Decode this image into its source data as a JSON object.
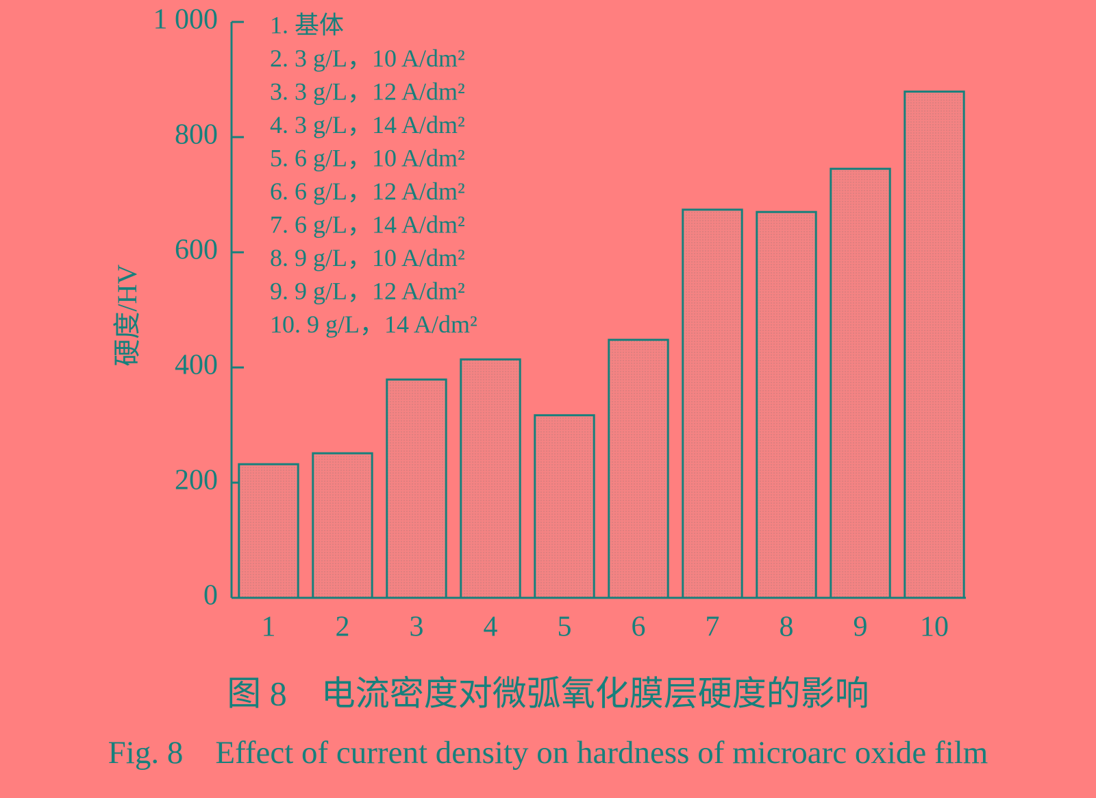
{
  "chart_data": {
    "type": "bar",
    "caption_cn": "图 8　电流密度对微弧氧化膜层硬度的影响",
    "caption_en": "Fig. 8　Effect of current density on hardness of microarc oxide film",
    "y_label": "硬度/HV",
    "categories": [
      "1",
      "2",
      "3",
      "4",
      "5",
      "6",
      "7",
      "8",
      "9",
      "10"
    ],
    "values": [
      232,
      251,
      379,
      414,
      317,
      448,
      674,
      670,
      745,
      879
    ],
    "color": "#17807c",
    "ylim": [
      0,
      1000
    ],
    "yticks": [
      0,
      200,
      400,
      600,
      800,
      {
        "value": 1000,
        "label": "1 000"
      }
    ],
    "legend": [
      "1. 基体",
      "2. 3 g/L，10 A/dm²",
      "3. 3 g/L，12 A/dm²",
      "4. 3 g/L，14 A/dm²",
      "5. 6 g/L，10 A/dm²",
      "6. 6 g/L，12 A/dm²",
      "7. 6 g/L，14 A/dm²",
      "8. 9 g/L，10 A/dm²",
      "9. 9 g/L，12 A/dm²",
      "10. 9 g/L，14 A/dm²"
    ]
  }
}
